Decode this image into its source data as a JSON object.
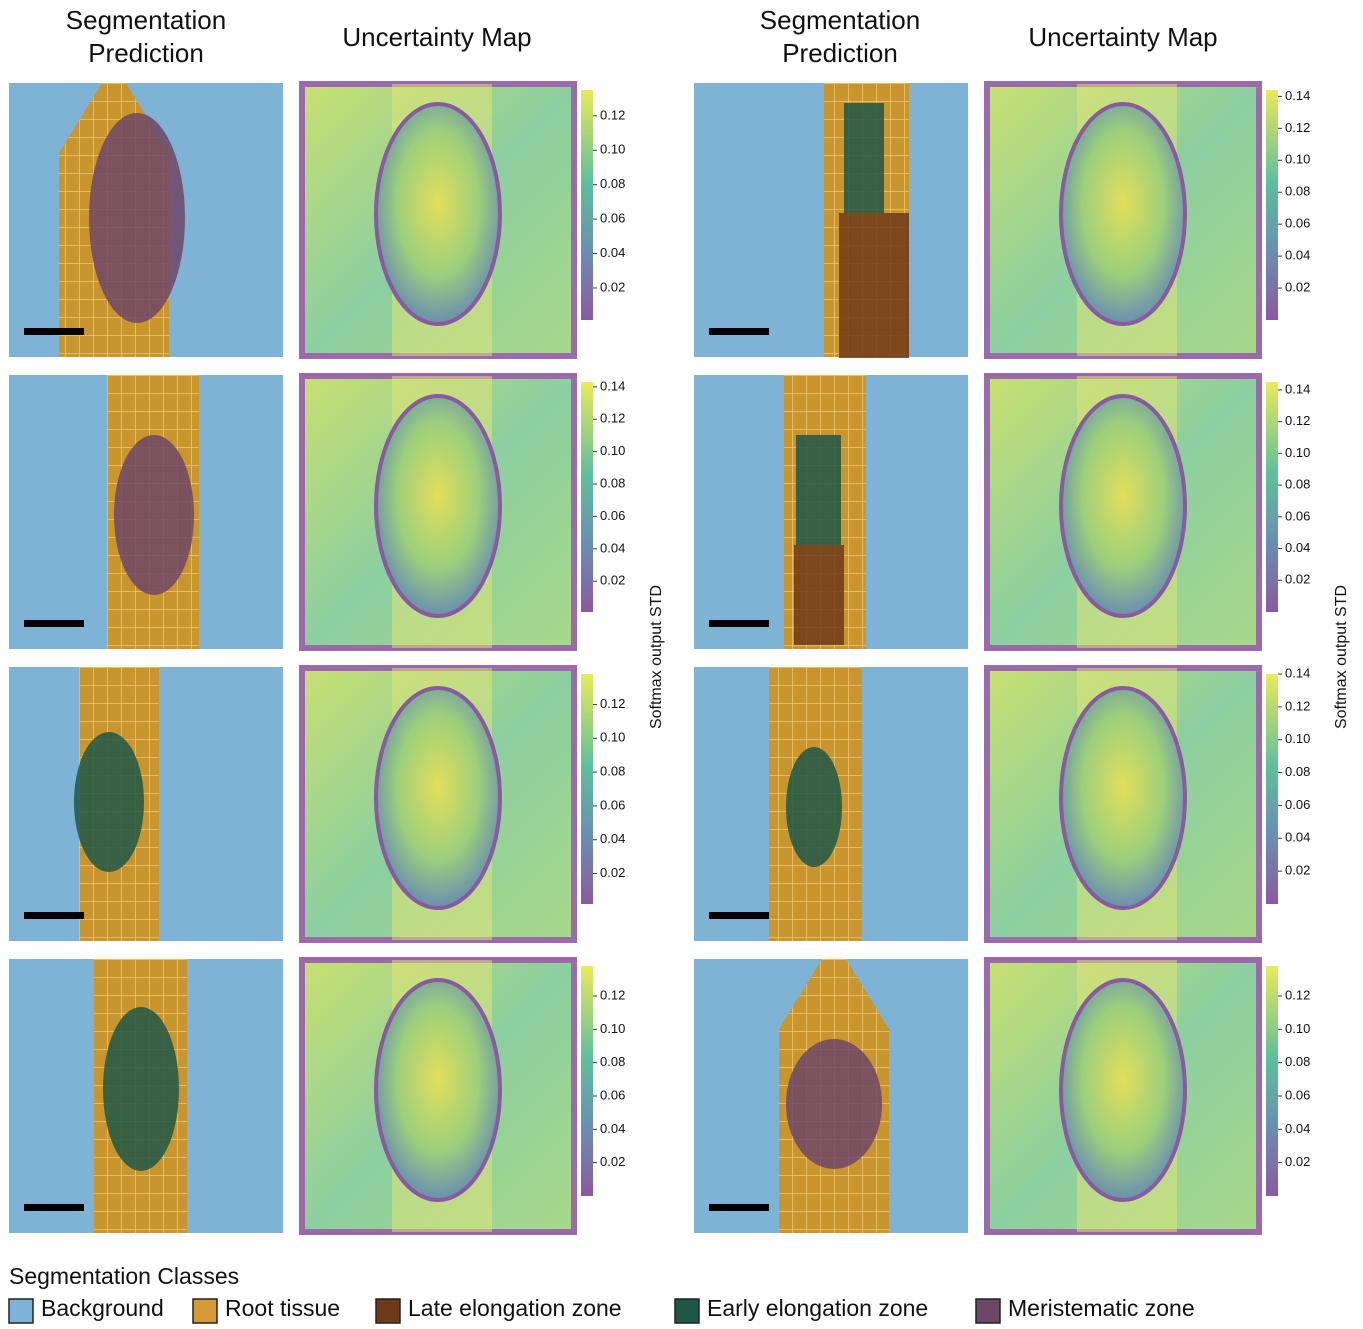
{
  "headers": [
    {
      "lines": [
        "Segmentation",
        "Prediction"
      ]
    },
    {
      "lines": [
        "Uncertainty Map"
      ]
    },
    {
      "lines": [
        "Segmentation",
        "Prediction"
      ]
    },
    {
      "lines": [
        "Uncertainty Map"
      ]
    }
  ],
  "colorbar_label": "Softmax output STD",
  "left_colorbars": [
    {
      "range": [
        0.0014,
        0.135
      ],
      "ticks": [
        {
          "value": 0.02,
          "label": "0.02"
        },
        {
          "value": 0.04,
          "label": "0.04"
        },
        {
          "value": 0.06,
          "label": "0.06"
        },
        {
          "value": 0.08,
          "label": "0.08"
        },
        {
          "value": 0.1,
          "label": "0.10"
        },
        {
          "value": 0.12,
          "label": "0.12"
        }
      ]
    },
    {
      "range": [
        0.001,
        0.143
      ],
      "ticks": [
        {
          "value": 0.02,
          "label": "0.02"
        },
        {
          "value": 0.04,
          "label": "0.04"
        },
        {
          "value": 0.06,
          "label": "0.06"
        },
        {
          "value": 0.08,
          "label": "0.08"
        },
        {
          "value": 0.1,
          "label": "0.10"
        },
        {
          "value": 0.12,
          "label": "0.12"
        },
        {
          "value": 0.14,
          "label": "0.14"
        }
      ]
    },
    {
      "range": [
        0.002,
        0.138
      ],
      "ticks": [
        {
          "value": 0.02,
          "label": "0.02"
        },
        {
          "value": 0.04,
          "label": "0.04"
        },
        {
          "value": 0.06,
          "label": "0.06"
        },
        {
          "value": 0.08,
          "label": "0.08"
        },
        {
          "value": 0.1,
          "label": "0.10"
        },
        {
          "value": 0.12,
          "label": "0.12"
        }
      ]
    },
    {
      "range": [
        0.0,
        0.138
      ],
      "ticks": [
        {
          "value": 0.02,
          "label": "0.02"
        },
        {
          "value": 0.04,
          "label": "0.04"
        },
        {
          "value": 0.06,
          "label": "0.06"
        },
        {
          "value": 0.08,
          "label": "0.08"
        },
        {
          "value": 0.1,
          "label": "0.10"
        },
        {
          "value": 0.12,
          "label": "0.12"
        }
      ]
    }
  ],
  "right_colorbars": [
    {
      "range": [
        0.0,
        0.144
      ],
      "ticks": [
        {
          "value": 0.02,
          "label": "0.02"
        },
        {
          "value": 0.04,
          "label": "0.04"
        },
        {
          "value": 0.06,
          "label": "0.06"
        },
        {
          "value": 0.08,
          "label": "0.08"
        },
        {
          "value": 0.1,
          "label": "0.10"
        },
        {
          "value": 0.12,
          "label": "0.12"
        },
        {
          "value": 0.14,
          "label": "0.14"
        }
      ]
    },
    {
      "range": [
        0.0,
        0.145
      ],
      "ticks": [
        {
          "value": 0.02,
          "label": "0.02"
        },
        {
          "value": 0.04,
          "label": "0.04"
        },
        {
          "value": 0.06,
          "label": "0.06"
        },
        {
          "value": 0.08,
          "label": "0.08"
        },
        {
          "value": 0.1,
          "label": "0.10"
        },
        {
          "value": 0.12,
          "label": "0.12"
        },
        {
          "value": 0.14,
          "label": "0.14"
        }
      ]
    },
    {
      "range": [
        0.0,
        0.14
      ],
      "ticks": [
        {
          "value": 0.02,
          "label": "0.02"
        },
        {
          "value": 0.04,
          "label": "0.04"
        },
        {
          "value": 0.06,
          "label": "0.06"
        },
        {
          "value": 0.08,
          "label": "0.08"
        },
        {
          "value": 0.1,
          "label": "0.10"
        },
        {
          "value": 0.12,
          "label": "0.12"
        },
        {
          "value": 0.14,
          "label": "0.14"
        }
      ]
    },
    {
      "range": [
        0.0,
        0.138
      ],
      "ticks": [
        {
          "value": 0.02,
          "label": "0.02"
        },
        {
          "value": 0.04,
          "label": "0.04"
        },
        {
          "value": 0.06,
          "label": "0.06"
        },
        {
          "value": 0.08,
          "label": "0.08"
        },
        {
          "value": 0.1,
          "label": "0.10"
        },
        {
          "value": 0.12,
          "label": "0.12"
        }
      ]
    }
  ],
  "legend": {
    "title": "Segmentation Classes",
    "items": [
      {
        "name": "Background",
        "color": "#7fb3d5"
      },
      {
        "name": "Root tissue",
        "color": "#d49a35"
      },
      {
        "name": "Late elongation zone",
        "color": "#6e3a1a"
      },
      {
        "name": "Early elongation zone",
        "color": "#1f5747"
      },
      {
        "name": "Meristematic zone",
        "color": "#6e4666"
      }
    ]
  }
}
